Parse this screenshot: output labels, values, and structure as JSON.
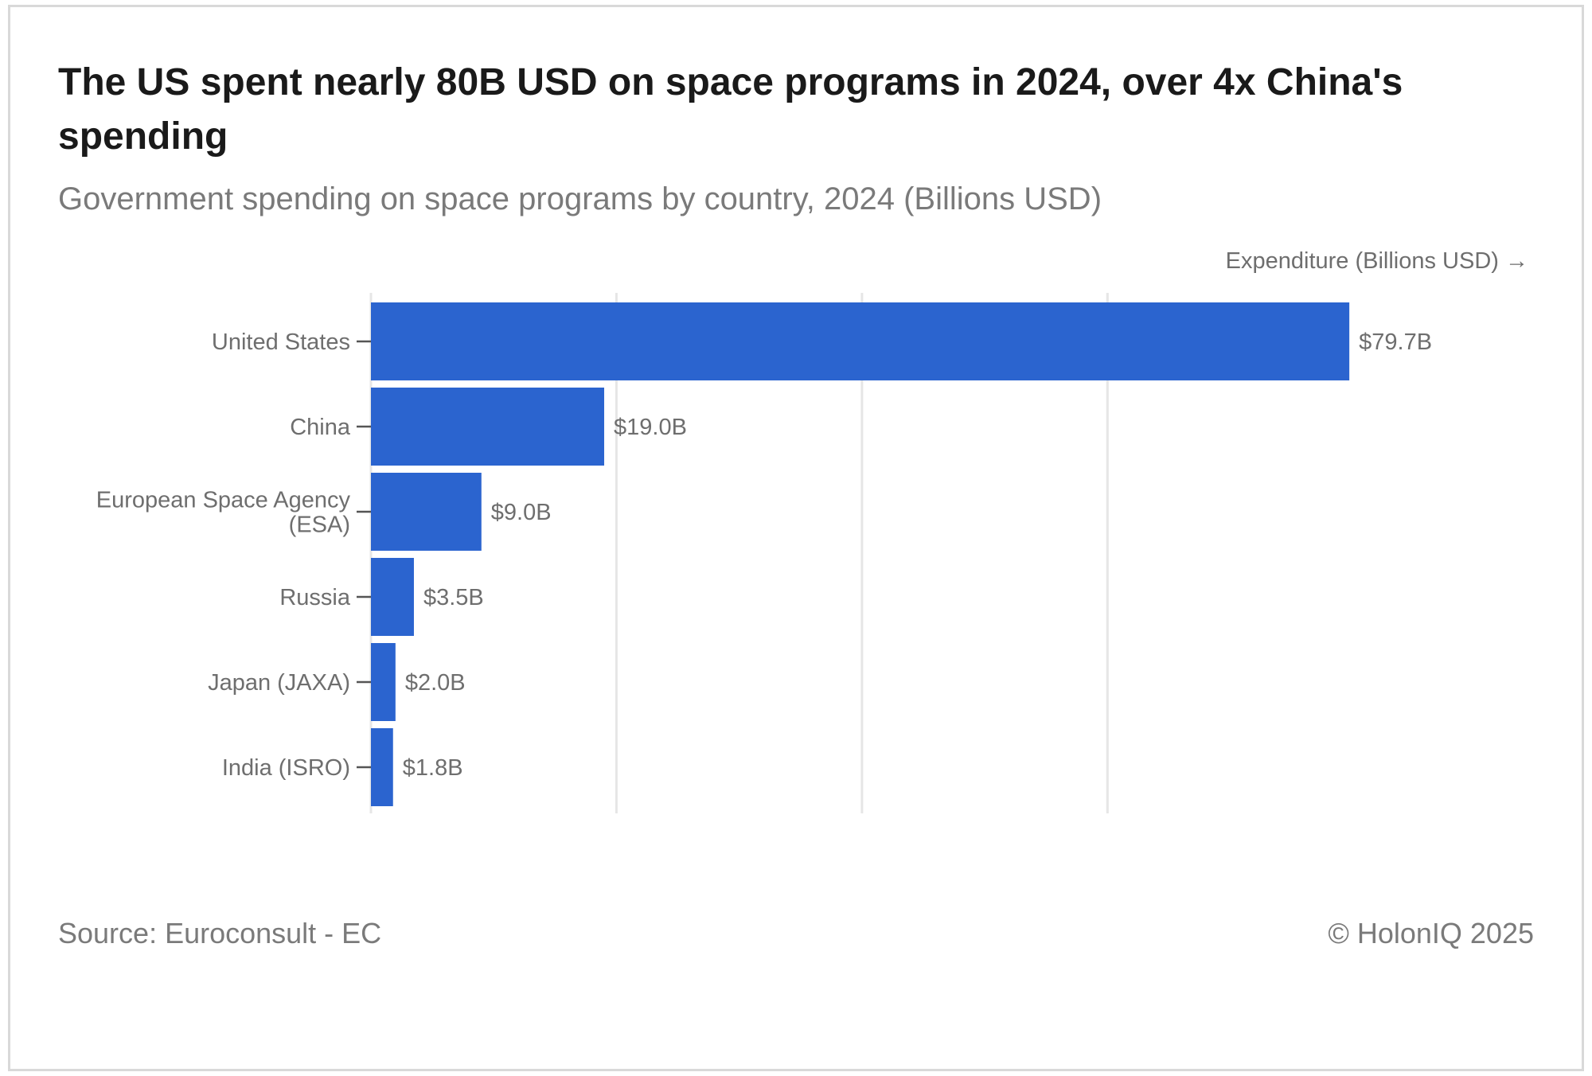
{
  "header": {
    "title": "The US spent nearly 80B USD on space programs in 2024, over 4x China's spending",
    "subtitle": "Government spending on space programs by country, 2024 (Billions USD)"
  },
  "footer": {
    "source": "Source: Euroconsult - EC",
    "copyright": "© HolonIQ 2025"
  },
  "chart_data": {
    "type": "bar",
    "orientation": "horizontal",
    "title": "The US spent nearly 80B USD on space programs in 2024, over 4x China's spending",
    "subtitle": "Government spending on space programs by country, 2024 (Billions USD)",
    "xlabel": "Expenditure (Billions USD) →",
    "ylabel": "",
    "categories": [
      [
        "United States"
      ],
      [
        "China"
      ],
      [
        "European Space Agency",
        "(ESA)"
      ],
      [
        "Russia"
      ],
      [
        "Japan (JAXA)"
      ],
      [
        "India (ISRO)"
      ]
    ],
    "values": [
      79.7,
      19.0,
      9.0,
      3.5,
      2.0,
      1.8
    ],
    "value_labels": [
      "$79.7B",
      "$19.0B",
      "$9.0B",
      "$3.5B",
      "$2.0B",
      "$1.8B"
    ],
    "xlim": [
      0,
      86.5
    ],
    "gridlines": [
      0,
      20,
      40,
      60
    ],
    "grid": true,
    "legend": "none",
    "bar_color": "#2b64cf"
  }
}
